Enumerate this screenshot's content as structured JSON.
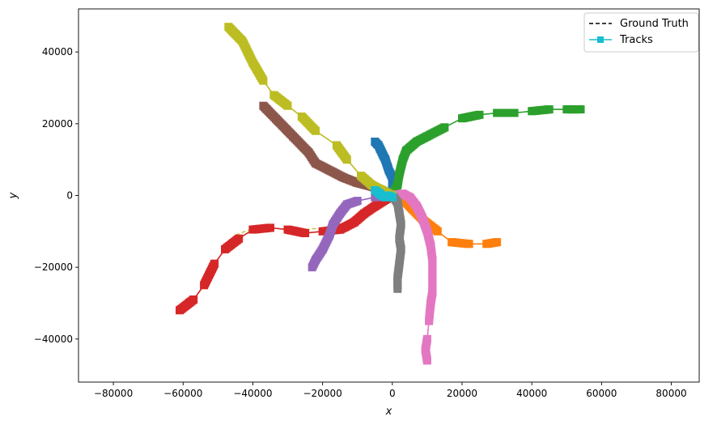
{
  "chart_data": {
    "type": "line",
    "title": "",
    "xlabel": "x",
    "ylabel": "y",
    "xlim": [
      -90000,
      88000
    ],
    "ylim": [
      -52000,
      52000
    ],
    "xticks": [
      -80000,
      -60000,
      -40000,
      -20000,
      0,
      20000,
      40000,
      60000,
      80000
    ],
    "yticks": [
      -40000,
      -20000,
      0,
      20000,
      40000
    ],
    "xtick_labels": [
      "−80000",
      "−60000",
      "−40000",
      "−20000",
      "0",
      "20000",
      "40000",
      "60000",
      "80000"
    ],
    "ytick_labels": [
      "−40000",
      "−20000",
      "0",
      "20000",
      "40000"
    ],
    "grid": false,
    "legend": {
      "placement": "top-right",
      "entries": [
        {
          "label": "Ground Truth",
          "style": "dashed",
          "color": "#000000"
        },
        {
          "label": "Tracks",
          "style": "line-square",
          "color": "#17becf"
        }
      ]
    },
    "series": [
      {
        "color": "#1f77b4",
        "points": [
          [
            -5000,
            15000
          ],
          [
            -4000,
            14000
          ],
          [
            -3500,
            13000
          ],
          [
            -2000,
            10000
          ],
          [
            -1000,
            7000
          ],
          [
            0,
            5000
          ],
          [
            0,
            2000
          ],
          [
            0,
            0
          ]
        ]
      },
      {
        "color": "#ff7f0e",
        "points": [
          [
            0,
            0
          ],
          [
            2000,
            -500
          ],
          [
            4000,
            -2000
          ],
          [
            6000,
            -4000
          ],
          [
            9000,
            -7000
          ],
          [
            13000,
            -10000
          ],
          [
            17000,
            -13000
          ],
          [
            22000,
            -13500
          ],
          [
            27000,
            -13500
          ],
          [
            30000,
            -13000
          ]
        ]
      },
      {
        "color": "#2ca02c",
        "points": [
          [
            0,
            0
          ],
          [
            1500,
            3000
          ],
          [
            2000,
            6000
          ],
          [
            3000,
            10000
          ],
          [
            4000,
            12500
          ],
          [
            7000,
            15000
          ],
          [
            10000,
            16500
          ],
          [
            15000,
            19000
          ],
          [
            20000,
            21500
          ],
          [
            25000,
            22500
          ],
          [
            30000,
            23000
          ],
          [
            35000,
            23000
          ],
          [
            40000,
            23500
          ],
          [
            45000,
            24000
          ],
          [
            50000,
            24000
          ],
          [
            54000,
            24000
          ]
        ]
      },
      {
        "color": "#d62728",
        "points": [
          [
            0,
            0
          ],
          [
            -5000,
            -3000
          ],
          [
            -8000,
            -5000
          ],
          [
            -11000,
            -7500
          ],
          [
            -15000,
            -9500
          ],
          [
            -20000,
            -10000
          ],
          [
            -25000,
            -10500
          ],
          [
            -30000,
            -9500
          ],
          [
            -35000,
            -9000
          ],
          [
            -40000,
            -9500
          ],
          [
            -44000,
            -12000
          ],
          [
            -48000,
            -15000
          ],
          [
            -51000,
            -19000
          ],
          [
            -54000,
            -25000
          ],
          [
            -57000,
            -29000
          ],
          [
            -61000,
            -32000
          ]
        ]
      },
      {
        "color": "#9467bd",
        "points": [
          [
            0,
            0
          ],
          [
            -5000,
            -500
          ],
          [
            -10000,
            -1500
          ],
          [
            -13000,
            -2500
          ],
          [
            -15000,
            -5000
          ],
          [
            -17000,
            -8000
          ],
          [
            -18000,
            -11000
          ],
          [
            -20000,
            -15000
          ],
          [
            -22000,
            -18000
          ],
          [
            -23000,
            -20000
          ]
        ]
      },
      {
        "color": "#8c564b",
        "points": [
          [
            0,
            0
          ],
          [
            -3000,
            1500
          ],
          [
            -6000,
            2500
          ],
          [
            -10000,
            3500
          ],
          [
            -14000,
            5000
          ],
          [
            -18000,
            7000
          ],
          [
            -22000,
            9000
          ],
          [
            -24000,
            12000
          ],
          [
            -27000,
            15000
          ],
          [
            -30000,
            18000
          ],
          [
            -33000,
            21000
          ],
          [
            -36000,
            24000
          ],
          [
            -37000,
            25000
          ]
        ]
      },
      {
        "color": "#e377c2",
        "points": [
          [
            0,
            0
          ],
          [
            3000,
            500
          ],
          [
            5000,
            -500
          ],
          [
            7000,
            -3000
          ],
          [
            8500,
            -6000
          ],
          [
            10000,
            -10000
          ],
          [
            11000,
            -14000
          ],
          [
            11500,
            -18000
          ],
          [
            11500,
            -22000
          ],
          [
            11500,
            -27000
          ],
          [
            11000,
            -30000
          ],
          [
            10500,
            -35000
          ],
          [
            10000,
            -40000
          ],
          [
            9500,
            -43000
          ],
          [
            10000,
            -46000
          ]
        ]
      },
      {
        "color": "#7f7f7f",
        "points": [
          [
            0,
            0
          ],
          [
            1500,
            -2000
          ],
          [
            2000,
            -5000
          ],
          [
            2500,
            -8000
          ],
          [
            2000,
            -12000
          ],
          [
            2500,
            -15000
          ],
          [
            2000,
            -19000
          ],
          [
            1500,
            -23000
          ],
          [
            1500,
            -26000
          ]
        ]
      },
      {
        "color": "#bcbd22",
        "points": [
          [
            0,
            0
          ],
          [
            -3000,
            1500
          ],
          [
            -6000,
            3000
          ],
          [
            -9000,
            5500
          ],
          [
            -13000,
            10000
          ],
          [
            -16000,
            14000
          ],
          [
            -22000,
            18000
          ],
          [
            -26000,
            22000
          ],
          [
            -30000,
            25000
          ],
          [
            -34000,
            28000
          ],
          [
            -37000,
            32000
          ],
          [
            -40000,
            37000
          ],
          [
            -41000,
            39000
          ],
          [
            -43000,
            43000
          ],
          [
            -45000,
            45000
          ],
          [
            -47000,
            47000
          ]
        ]
      },
      {
        "color": "#17becf",
        "points": [
          [
            -5000,
            1500
          ],
          [
            -4000,
            800
          ],
          [
            -3000,
            0
          ],
          [
            -2000,
            -500
          ],
          [
            -1000,
            0
          ],
          [
            0,
            -500
          ]
        ]
      }
    ],
    "ground_truth_extra": [
      {
        "color": "#bcbd22",
        "points": [
          [
            0,
            0
          ],
          [
            -5000,
            -3000
          ],
          [
            -10000,
            -6000
          ],
          [
            -15000,
            -8000
          ],
          [
            -20000,
            -9000
          ],
          [
            -25000,
            -9500
          ],
          [
            -30000,
            -9500
          ],
          [
            -35000,
            -9000
          ],
          [
            -40000,
            -9200
          ],
          [
            -45000,
            -11000
          ],
          [
            -48000,
            -14000
          ]
        ]
      },
      {
        "color": "#e377c2",
        "points": [
          [
            0,
            0
          ],
          [
            4000,
            500
          ],
          [
            8000,
            -3000
          ],
          [
            10000,
            -8000
          ]
        ]
      }
    ]
  }
}
